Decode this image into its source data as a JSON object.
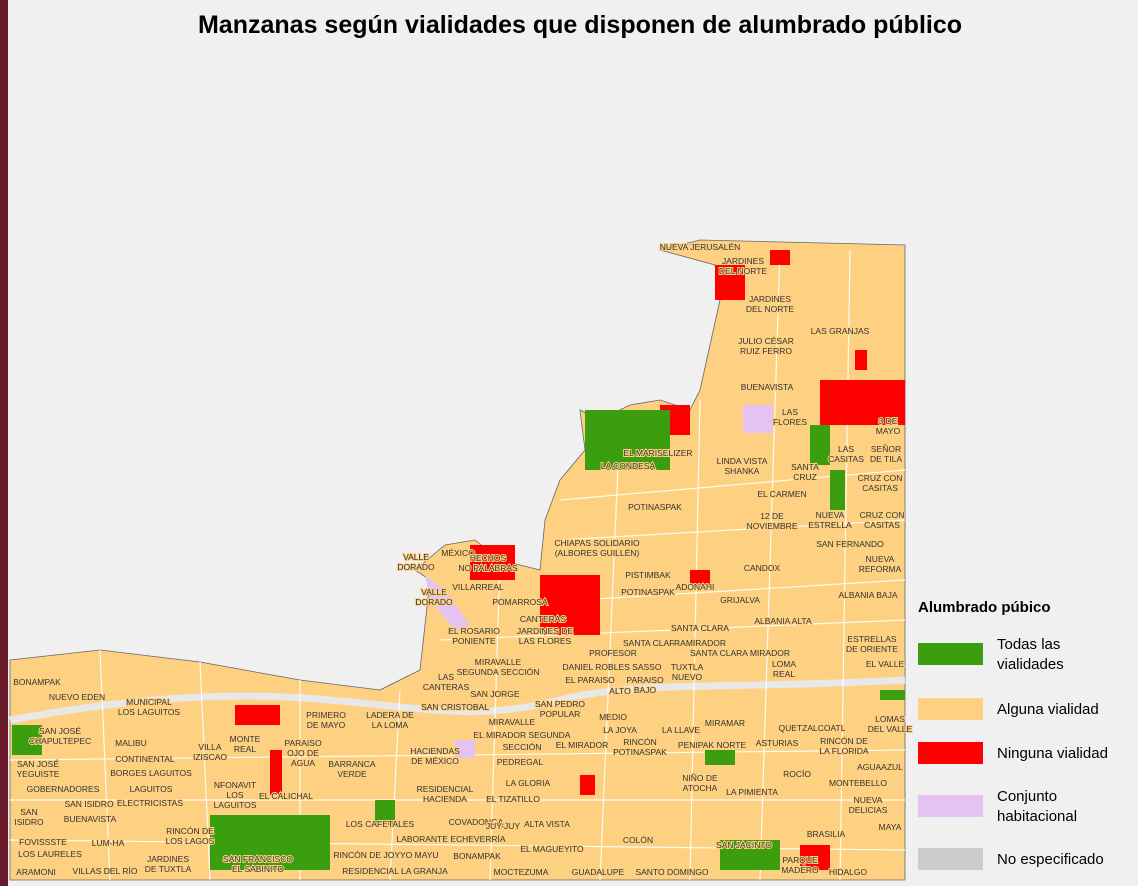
{
  "header": {
    "title": "Manzanas según vialidades que disponen de alumbrado público"
  },
  "legend": {
    "title": "Alumbrado púbico",
    "items": [
      {
        "label": [
          "Todas las",
          "vialidades"
        ],
        "color": "#3a9e0e"
      },
      {
        "label": [
          "Alguna vialidad"
        ],
        "color": "#fdd181"
      },
      {
        "label": [
          "Ninguna vialidad"
        ],
        "color": "#ff0000"
      },
      {
        "label": [
          "Conjunto",
          "habitacional"
        ],
        "color": "#e4c3f3"
      },
      {
        "label": [
          "No especificado"
        ],
        "color": "#cccccc"
      }
    ]
  },
  "map": {
    "labels": [
      [
        "NUEVA JERUSALÉN"
      ],
      [
        "JARDINES",
        "DEL NORTE"
      ],
      [
        "JARDINES",
        "DEL NORTE"
      ],
      [
        "LAS GRANJAS"
      ],
      [
        "JULIO CÉSAR",
        "RUIZ FERRO"
      ],
      [
        "BUENAVISTA"
      ],
      [
        "LAS",
        "FLORES"
      ],
      [
        "3 DE",
        "MAYO"
      ],
      [
        "EL MARISELIZER"
      ],
      [
        "LA CONDESA"
      ],
      [
        "LINDA VISTA",
        "SHANKA"
      ],
      [
        "LAS",
        "CASITAS"
      ],
      [
        "SEÑOR",
        "DE TILA"
      ],
      [
        "SANTA",
        "CRUZ"
      ],
      [
        "CRUZ CON",
        "CASITAS"
      ],
      [
        "EL CARMEN"
      ],
      [
        "POTINASPAK"
      ],
      [
        "12 DE",
        "NOVIEMBRE"
      ],
      [
        "NUEVA",
        "ESTRELLA"
      ],
      [
        "CRUZ CON",
        "CASITAS"
      ],
      [
        "CHIAPAS SOLIDARIO",
        "(ALBORES GUILLÉN)"
      ],
      [
        "SAN FERNANDO"
      ],
      [
        "VALLE",
        "DORADO"
      ],
      [
        "MÉXICO"
      ],
      [
        "HECHOS",
        "NO PALABRAS"
      ],
      [
        "NUEVA",
        "REFORMA"
      ],
      [
        "CANDOX"
      ],
      [
        "VILLARREAL"
      ],
      [
        "PISTIMBAK"
      ],
      [
        "POTINASPAK"
      ],
      [
        "ADONAHI"
      ],
      [
        "VALLE",
        "DORADO"
      ],
      [
        "ALBANIA BAJA"
      ],
      [
        "GRIJALVA"
      ],
      [
        "POMARROSA"
      ],
      [
        "CANTERAS"
      ],
      [
        "ALBANIA ALTA"
      ],
      [
        "SANTA CLARA"
      ],
      [
        "EL ROSARIO",
        "PONIENTE"
      ],
      [
        "JARDINES DE",
        "LAS FLORES"
      ],
      [
        "ESTRELLAS",
        "DE ORIENTE"
      ],
      [
        "SANTA CLARA"
      ],
      [
        "RAMIRADOR"
      ],
      [
        "PROFESOR"
      ],
      [
        "SANTA CLARA MIRADOR"
      ],
      [
        "EL VALLE"
      ],
      [
        "MIRAVALLE",
        "SEGUNDA SECCIÓN"
      ],
      [
        "DANIEL ROBLES SASSO"
      ],
      [
        "TUXTLA",
        "NUEVO"
      ],
      [
        "LOMA",
        "REAL"
      ],
      [
        "EL PARAISO"
      ],
      [
        "PARAISO",
        "BAJO"
      ],
      [
        "ALTO"
      ],
      [
        "BONAMPAK"
      ],
      [
        "LAS",
        "CANTERAS"
      ],
      [
        "SAN JORGE"
      ],
      [
        "NUEVO EDEN"
      ],
      [
        "MUNICIPAL",
        "LOS LAGUITOS"
      ],
      [
        "SAN CRISTOBAL"
      ],
      [
        "SAN PEDRO",
        "POPULAR"
      ],
      [
        "MEDIO"
      ],
      [
        "PRIMERO",
        "DE MAYO"
      ],
      [
        "LADERA DE",
        "LA LOMA"
      ],
      [
        "LA JOYA"
      ],
      [
        "LA LLAVE"
      ],
      [
        "MIRAMAR"
      ],
      [
        "QUETZALCOATL"
      ],
      [
        "LOMAS",
        "DEL VALLE"
      ],
      [
        "SAN JOSÉ",
        "CHAPULTEPEC"
      ],
      [
        "MALIBU"
      ],
      [
        "MONTE",
        "REAL"
      ],
      [
        "MIRAVALLE"
      ],
      [
        "EL MIRADOR SEGUNDA"
      ],
      [
        "SECCIÓN"
      ],
      [
        "EL MIRADOR"
      ],
      [
        "RINCÓN",
        "POTINASPAK"
      ],
      [
        "PENIPAK NORTE"
      ],
      [
        "ASTURIAS"
      ],
      [
        "RINCÓN DE",
        "LA FLORIDA"
      ],
      [
        "VILLA",
        "IZISCAO"
      ],
      [
        "CONTINENTAL"
      ],
      [
        "PARAISO",
        "OJO DE",
        "AGUA"
      ],
      [
        "HACIENDAS",
        "DE MÉXICO"
      ],
      [
        "PEDREGAL"
      ],
      [
        "BARRANCA",
        "VERDE"
      ],
      [
        "AGUAAZUL"
      ],
      [
        "SAN JOSÉ",
        "YEGUISTE"
      ],
      [
        "BORGES LAGUITOS"
      ],
      [
        "ROCÍO"
      ],
      [
        "MONTEBELLO"
      ],
      [
        "NIÑO DE",
        "ATOCHA"
      ],
      [
        "NFONAVIT",
        "LOS",
        "LAGUITOS"
      ],
      [
        "GOBERNADORES"
      ],
      [
        "LAGUITOS"
      ],
      [
        "RESIDENCIAL",
        "HACIENDA"
      ],
      [
        "LA GLORIA"
      ],
      [
        "LA PIMIENTA"
      ],
      [
        "SAN ISIDRO"
      ],
      [
        "ELECTRICISTAS"
      ],
      [
        "EL CALICHAL"
      ],
      [
        "EL TIZATILLO"
      ],
      [
        "NUEVA",
        "DELICIAS"
      ],
      [
        "SAN",
        "ISIDRO"
      ],
      [
        "BUENAVISTA"
      ],
      [
        "LOS CAFETALES"
      ],
      [
        "COVADONGA"
      ],
      [
        "JUY-JUY"
      ],
      [
        "ALTA VISTA"
      ],
      [
        "MAYA"
      ],
      [
        "RINCÓN DE",
        "LOS LAGOS"
      ],
      [
        "COLÓN"
      ],
      [
        "BRASILIA"
      ],
      [
        "FOVISSSTE"
      ],
      [
        "LUM-HA"
      ],
      [
        "LABORANTE ECHEVERRÍA"
      ],
      [
        "SAN JACINTO"
      ],
      [
        "LOS LAURELES"
      ],
      [
        "JARDINES",
        "DE TUXTLA"
      ],
      [
        "SAN FRANCISCO",
        "EL SABINITO"
      ],
      [
        "RINCÓN DE JOYYO MAYU"
      ],
      [
        "BONAMPAK"
      ],
      [
        "EL MAGUEYITO"
      ],
      [
        "PARQUE",
        "MADERO"
      ],
      [
        "ARAMONI"
      ],
      [
        "VILLAS DEL RÍO"
      ],
      [
        "RESIDENCIAL LA GRANJA"
      ],
      [
        "MOCTEZUMA"
      ],
      [
        "GUADALUPE"
      ],
      [
        "SANTO DOMINGO"
      ],
      [
        "HIDALGO"
      ]
    ]
  }
}
